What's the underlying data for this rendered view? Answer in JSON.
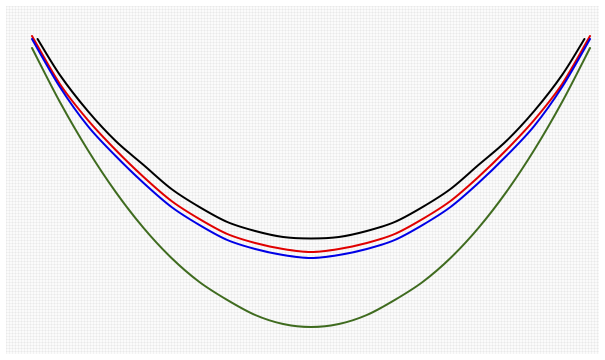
{
  "chart_data": {
    "type": "line",
    "title": "",
    "xlabel": "",
    "ylabel": "",
    "grid": true,
    "xlim": [
      -1,
      1
    ],
    "ylim": [
      0,
      1.2
    ],
    "series": [
      {
        "color": "#000000",
        "x": [
          -0.98,
          -0.9,
          -0.8,
          -0.7,
          -0.6,
          -0.5,
          -0.4,
          -0.3,
          -0.2,
          -0.1,
          0.0,
          0.1,
          0.2,
          0.3,
          0.4,
          0.5,
          0.6,
          0.7,
          0.8,
          0.9,
          0.98
        ],
        "y": [
          1.07,
          0.95,
          0.83,
          0.73,
          0.65,
          0.57,
          0.51,
          0.46,
          0.43,
          0.41,
          0.405,
          0.41,
          0.43,
          0.46,
          0.51,
          0.57,
          0.65,
          0.73,
          0.83,
          0.95,
          1.07
        ]
      },
      {
        "color": "#e00000",
        "x": [
          -1.0,
          -0.9,
          -0.8,
          -0.7,
          -0.6,
          -0.5,
          -0.4,
          -0.3,
          -0.2,
          -0.1,
          0.0,
          0.1,
          0.2,
          0.3,
          0.4,
          0.5,
          0.6,
          0.7,
          0.8,
          0.9,
          1.0
        ],
        "y": [
          1.08,
          0.92,
          0.8,
          0.7,
          0.61,
          0.53,
          0.47,
          0.42,
          0.39,
          0.37,
          0.36,
          0.37,
          0.39,
          0.42,
          0.47,
          0.53,
          0.61,
          0.7,
          0.8,
          0.92,
          1.08
        ]
      },
      {
        "color": "#0000e6",
        "x": [
          -1.0,
          -0.9,
          -0.8,
          -0.7,
          -0.6,
          -0.5,
          -0.4,
          -0.3,
          -0.2,
          -0.1,
          0.0,
          0.1,
          0.2,
          0.3,
          0.4,
          0.5,
          0.6,
          0.7,
          0.8,
          0.9,
          1.0
        ],
        "y": [
          1.07,
          0.91,
          0.78,
          0.68,
          0.59,
          0.51,
          0.45,
          0.4,
          0.37,
          0.35,
          0.34,
          0.35,
          0.37,
          0.4,
          0.45,
          0.51,
          0.59,
          0.68,
          0.78,
          0.91,
          1.07
        ]
      },
      {
        "color": "#3f6b1f",
        "x": [
          -1.0,
          -0.9,
          -0.8,
          -0.7,
          -0.6,
          -0.5,
          -0.4,
          -0.3,
          -0.2,
          -0.1,
          0.0,
          0.1,
          0.2,
          0.3,
          0.4,
          0.5,
          0.6,
          0.7,
          0.8,
          0.9,
          1.0
        ],
        "y": [
          1.04,
          0.86,
          0.7,
          0.56,
          0.44,
          0.34,
          0.26,
          0.2,
          0.15,
          0.12,
          0.11,
          0.12,
          0.15,
          0.2,
          0.26,
          0.34,
          0.44,
          0.56,
          0.7,
          0.86,
          1.04
        ]
      }
    ]
  }
}
